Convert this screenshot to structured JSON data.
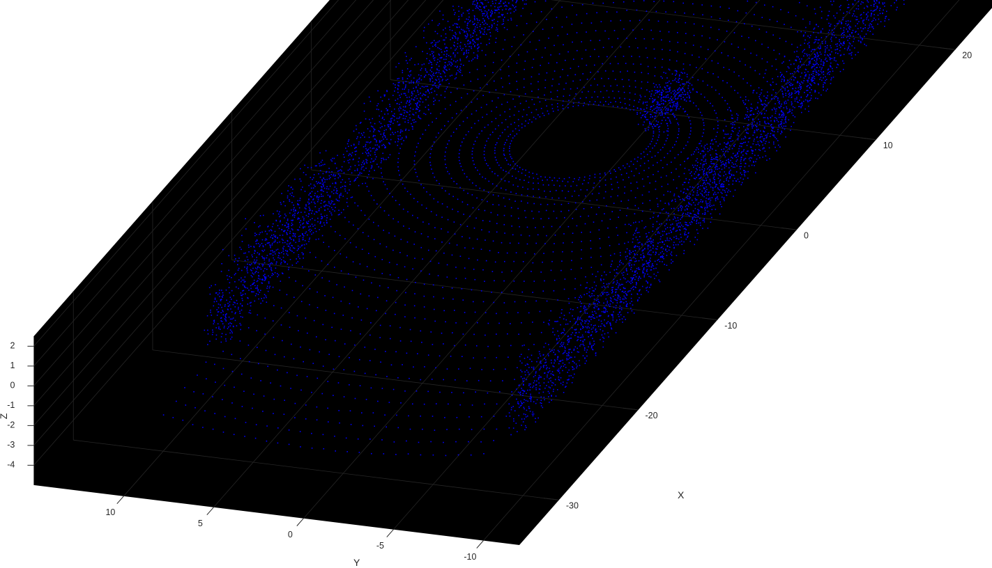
{
  "chart_data": {
    "type": "scatter",
    "title": "",
    "xlabel": "X",
    "ylabel": "Y",
    "zlabel": "Z",
    "x_ticks": [
      -30,
      -20,
      -10,
      0,
      10,
      20
    ],
    "y_ticks": [
      10,
      5,
      0,
      -5,
      -10
    ],
    "z_ticks": [
      2,
      1,
      0,
      -1,
      -2,
      -3,
      -4
    ],
    "xlim": [
      -35,
      27
    ],
    "ylim": [
      -12,
      15
    ],
    "zlim": [
      -5,
      2.5
    ],
    "grid": true,
    "colors": {
      "axes_background": "#000000",
      "points": "#0000ff",
      "grid": "#262626",
      "figure_background": "#ffffff"
    },
    "series": [
      {
        "description_of_content": "lidar point cloud: ground rings around sensor at origin plus building walls on both sides of street",
        "structures": [
          {
            "kind": "ground_rings",
            "center_x": 0,
            "center_y": 0,
            "r_min": 4,
            "r_max": 34,
            "ring_count": 30
          },
          {
            "kind": "wall",
            "x_range": [
              -30,
              25
            ],
            "y": -9.5,
            "z_range": [
              -2,
              2
            ]
          },
          {
            "kind": "wall",
            "x_range": [
              -25,
              22
            ],
            "y": 9.5,
            "z_range": [
              -2,
              2
            ]
          },
          {
            "kind": "vehicle",
            "x": 4,
            "y": -3,
            "z_range": [
              -2,
              -0.5
            ]
          }
        ]
      }
    ]
  }
}
